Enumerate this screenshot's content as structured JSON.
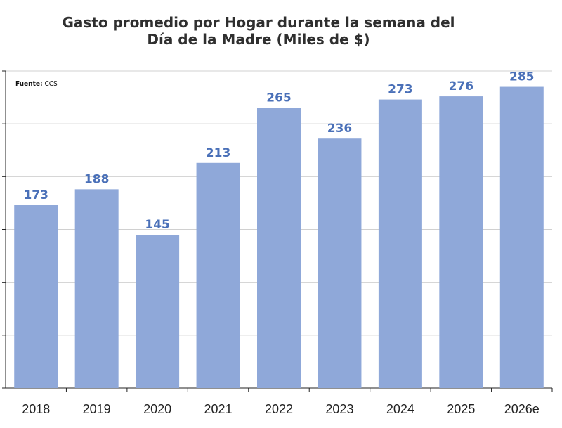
{
  "title_line1": "Gasto promedio por Hogar durante la semana del",
  "title_line2": "Día de la Madre (Miles de $)",
  "source_label": "Fuente:",
  "source_value": "CCS",
  "colors": {
    "bar": "#8fa8d9",
    "value_label": "#4a70b8",
    "grid": "#d0d0d0",
    "axis": "#222222"
  },
  "chart_data": {
    "type": "bar",
    "title": "Gasto promedio por Hogar durante la semana del Día de la Madre (Miles de $)",
    "categories": [
      "2018",
      "2019",
      "2020",
      "2021",
      "2022",
      "2023",
      "2024",
      "2025",
      "2026e"
    ],
    "values": [
      173,
      188,
      145,
      213,
      265,
      236,
      273,
      276,
      285
    ],
    "xlabel": "",
    "ylabel": "",
    "ylim": [
      0,
      300
    ],
    "grid": true,
    "data_labels": true,
    "legend": "none"
  }
}
